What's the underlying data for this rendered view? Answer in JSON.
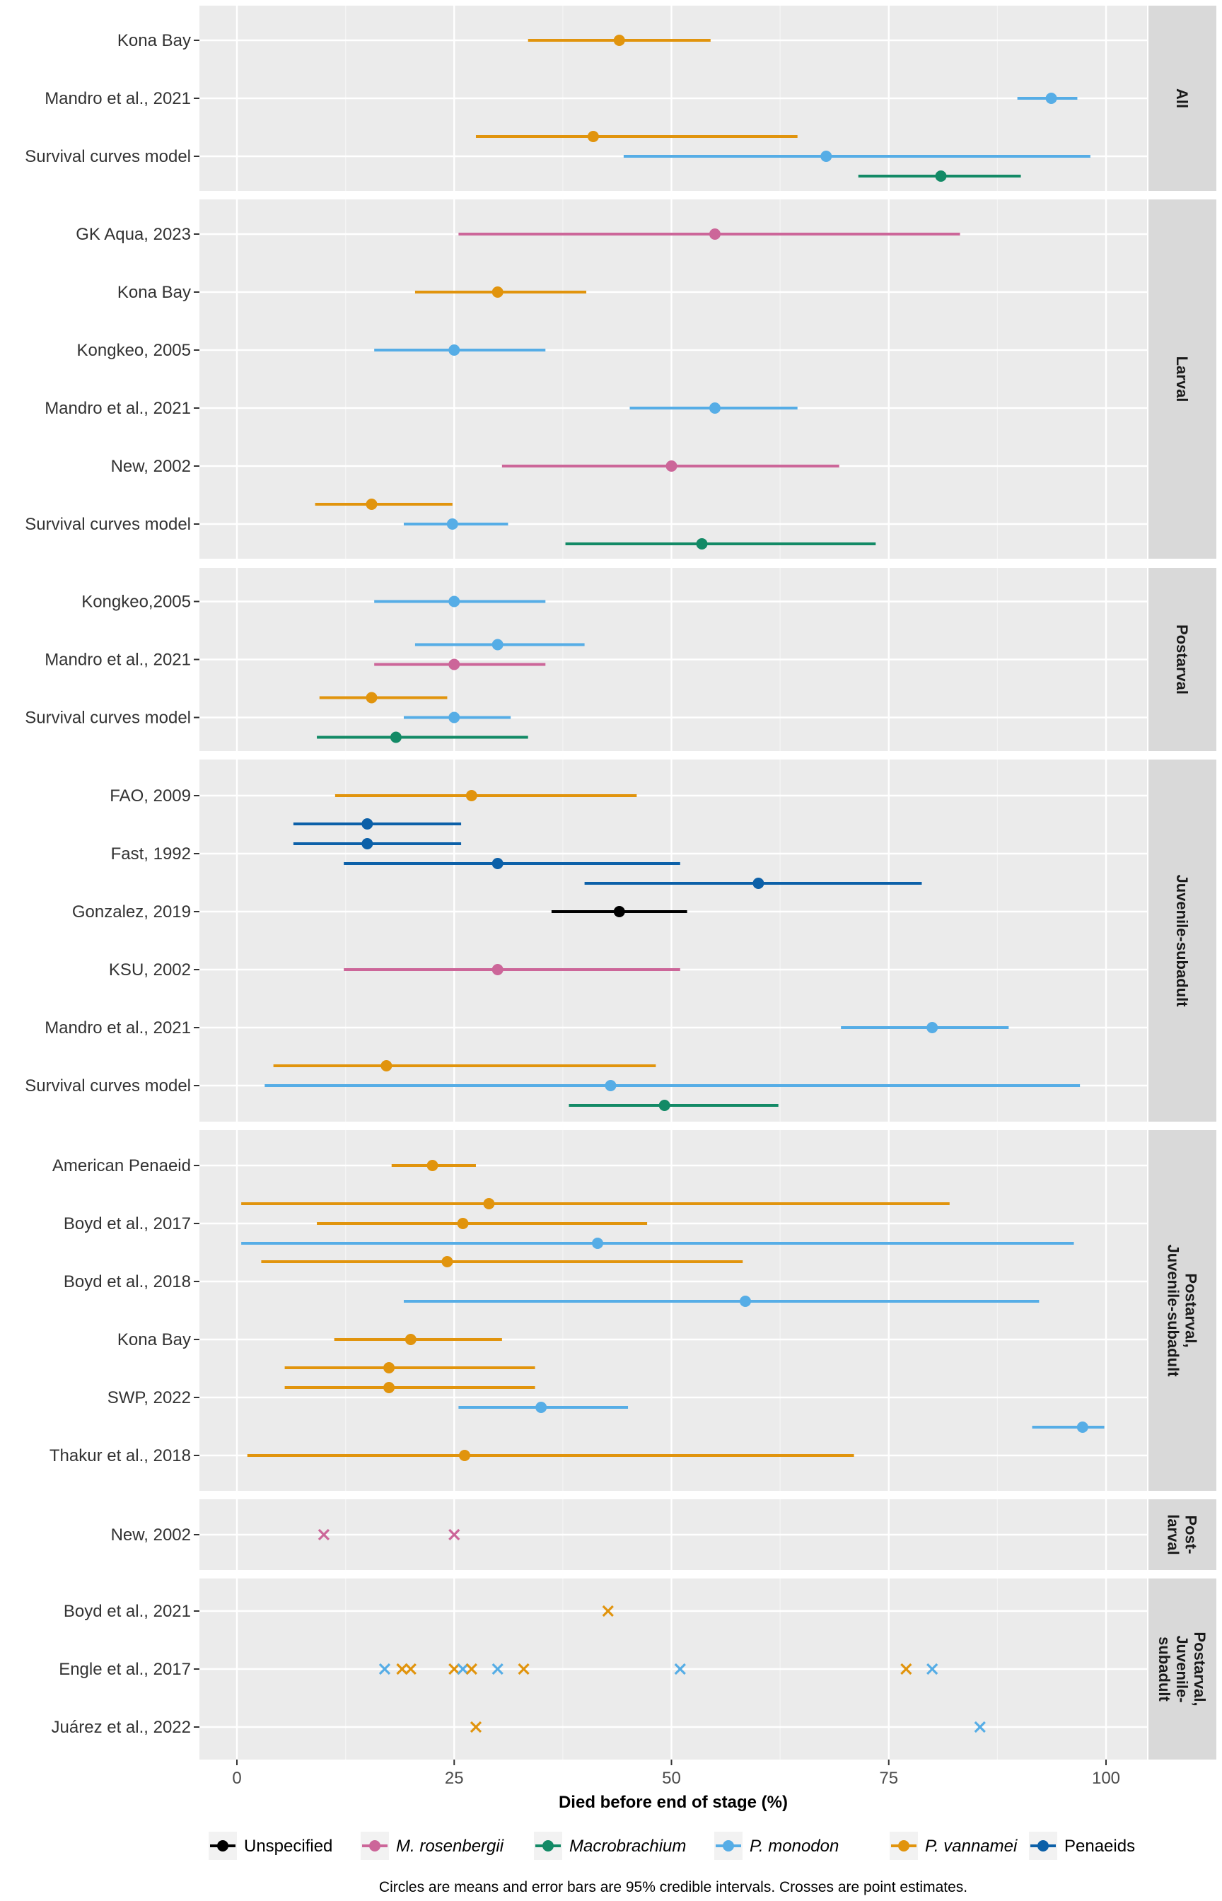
{
  "chart_data": {
    "type": "scatter",
    "xlabel": "Died before end of stage (%)",
    "xlim": [
      -4.5,
      104.5
    ],
    "x_ticks": [
      0,
      25,
      50,
      75,
      100
    ],
    "caption": "Circles are means and error bars are 95% credible intervals. Crosses are point estimates.",
    "legend_position": "bottom",
    "legend": [
      {
        "key": "unspecified",
        "label": "Unspecified",
        "italic": false
      },
      {
        "key": "mros",
        "label": "M. rosenbergii",
        "italic": true
      },
      {
        "key": "macro",
        "label": "Macrobrachium",
        "italic": true
      },
      {
        "key": "pmono",
        "label": "P. monodon",
        "italic": true
      },
      {
        "key": "pvan",
        "label": "P. vannamei",
        "italic": true
      },
      {
        "key": "pen",
        "label": "Penaeids",
        "italic": false
      }
    ],
    "colors": {
      "unspecified": "#000000",
      "mros": "#CC6699",
      "macro": "#138A66",
      "pmono": "#56ADE6",
      "pvan": "#E1940D",
      "pen": "#0C60A8"
    },
    "panels": [
      {
        "strip": [
          "All"
        ],
        "categories": [
          "Survival curves model",
          "Mandro et al., 2021",
          "Kona Bay"
        ],
        "points": [
          {
            "cat": 0,
            "off": 1,
            "series": "pvan",
            "mean": 41,
            "lo": 27.5,
            "hi": 64.5
          },
          {
            "cat": 0,
            "off": 0,
            "series": "pmono",
            "mean": 67.8,
            "lo": 44.5,
            "hi": 98.2
          },
          {
            "cat": 0,
            "off": -1,
            "series": "macro",
            "mean": 81,
            "lo": 71.5,
            "hi": 90.2
          },
          {
            "cat": 1,
            "off": 0,
            "series": "pmono",
            "mean": 93.7,
            "lo": 89.8,
            "hi": 96.7
          },
          {
            "cat": 2,
            "off": 0,
            "series": "pvan",
            "mean": 44,
            "lo": 33.5,
            "hi": 54.5
          }
        ]
      },
      {
        "strip": [
          "Larval"
        ],
        "categories": [
          "Survival curves model",
          "New, 2002",
          "Mandro et al., 2021",
          "Kongkeo, 2005",
          "Kona Bay",
          "GK Aqua, 2023"
        ],
        "points": [
          {
            "cat": 0,
            "off": 1,
            "series": "pvan",
            "mean": 15.5,
            "lo": 9,
            "hi": 24.8
          },
          {
            "cat": 0,
            "off": 0,
            "series": "pmono",
            "mean": 24.8,
            "lo": 19.2,
            "hi": 31.2
          },
          {
            "cat": 0,
            "off": -1,
            "series": "macro",
            "mean": 53.5,
            "lo": 37.8,
            "hi": 73.5
          },
          {
            "cat": 1,
            "off": 0,
            "series": "mros",
            "mean": 50,
            "lo": 30.5,
            "hi": 69.3
          },
          {
            "cat": 2,
            "off": 0,
            "series": "pmono",
            "mean": 55,
            "lo": 45.2,
            "hi": 64.5
          },
          {
            "cat": 3,
            "off": 0,
            "series": "pmono",
            "mean": 25,
            "lo": 15.8,
            "hi": 35.5
          },
          {
            "cat": 4,
            "off": 0,
            "series": "pvan",
            "mean": 30,
            "lo": 20.5,
            "hi": 40.2
          },
          {
            "cat": 5,
            "off": 0,
            "series": "mros",
            "mean": 55,
            "lo": 25.5,
            "hi": 83.2
          }
        ]
      },
      {
        "strip": [
          "Postarval"
        ],
        "categories": [
          "Survival curves model",
          "Mandro et al., 2021",
          "Kongkeo,2005"
        ],
        "points": [
          {
            "cat": 0,
            "off": 1,
            "series": "pvan",
            "mean": 15.5,
            "lo": 9.5,
            "hi": 24.2
          },
          {
            "cat": 0,
            "off": 0,
            "series": "pmono",
            "mean": 25,
            "lo": 19.2,
            "hi": 31.5
          },
          {
            "cat": 0,
            "off": -1,
            "series": "macro",
            "mean": 18.3,
            "lo": 9.2,
            "hi": 33.5
          },
          {
            "cat": 1,
            "off": 0.75,
            "series": "pmono",
            "mean": 30,
            "lo": 20.5,
            "hi": 40
          },
          {
            "cat": 1,
            "off": -0.25,
            "series": "mros",
            "mean": 25,
            "lo": 15.8,
            "hi": 35.5
          },
          {
            "cat": 2,
            "off": 0,
            "series": "pmono",
            "mean": 25,
            "lo": 15.8,
            "hi": 35.5
          }
        ]
      },
      {
        "strip": [
          "Juvenile-subadult"
        ],
        "categories": [
          "Survival curves model",
          "Mandro et al., 2021",
          "KSU, 2002",
          "Gonzalez, 2019",
          "Fast, 1992",
          "FAO, 2009"
        ],
        "points": [
          {
            "cat": 0,
            "off": 1,
            "series": "pvan",
            "mean": 17.2,
            "lo": 4.2,
            "hi": 48.2
          },
          {
            "cat": 0,
            "off": 0,
            "series": "pmono",
            "mean": 43,
            "lo": 3.2,
            "hi": 97
          },
          {
            "cat": 0,
            "off": -1,
            "series": "macro",
            "mean": 49.2,
            "lo": 38.2,
            "hi": 62.3
          },
          {
            "cat": 1,
            "off": 0,
            "series": "pmono",
            "mean": 80,
            "lo": 69.5,
            "hi": 88.8
          },
          {
            "cat": 2,
            "off": 0,
            "series": "mros",
            "mean": 30,
            "lo": 12.3,
            "hi": 51
          },
          {
            "cat": 3,
            "off": 0,
            "series": "unspecified",
            "mean": 44,
            "lo": 36.2,
            "hi": 51.8
          },
          {
            "cat": 4,
            "off": 1.5,
            "series": "pen",
            "mean": 15,
            "lo": 6.5,
            "hi": 25.8
          },
          {
            "cat": 4,
            "off": 0.5,
            "series": "pen",
            "mean": 15,
            "lo": 6.5,
            "hi": 25.8
          },
          {
            "cat": 4,
            "off": -0.5,
            "series": "pen",
            "mean": 30,
            "lo": 12.3,
            "hi": 51
          },
          {
            "cat": 4,
            "off": -1.5,
            "series": "pen",
            "mean": 60,
            "lo": 40,
            "hi": 78.8
          },
          {
            "cat": 5,
            "off": 0,
            "series": "pvan",
            "mean": 27,
            "lo": 11.3,
            "hi": 46
          }
        ]
      },
      {
        "strip": [
          "Postarval,",
          "Juvenile-subadult"
        ],
        "categories": [
          "Thakur et al., 2018",
          "SWP, 2022",
          "Kona Bay",
          "Boyd et al., 2018",
          "Boyd et al., 2017",
          "American Penaeid"
        ],
        "points": [
          {
            "cat": 0,
            "off": 0,
            "series": "pvan",
            "mean": 26.2,
            "lo": 1.2,
            "hi": 71
          },
          {
            "cat": 1,
            "off": 1.5,
            "series": "pvan",
            "mean": 17.5,
            "lo": 5.5,
            "hi": 34.3
          },
          {
            "cat": 1,
            "off": 0.5,
            "series": "pvan",
            "mean": 17.5,
            "lo": 5.5,
            "hi": 34.3
          },
          {
            "cat": 1,
            "off": -0.5,
            "series": "pmono",
            "mean": 35,
            "lo": 25.5,
            "hi": 45
          },
          {
            "cat": 1,
            "off": -1.5,
            "series": "pmono",
            "mean": 97.3,
            "lo": 91.5,
            "hi": 99.8
          },
          {
            "cat": 2,
            "off": 0,
            "series": "pvan",
            "mean": 20,
            "lo": 11.2,
            "hi": 30.5
          },
          {
            "cat": 3,
            "off": 1,
            "series": "pvan",
            "mean": 24.2,
            "lo": 2.8,
            "hi": 58.2
          },
          {
            "cat": 3,
            "off": -1,
            "series": "pmono",
            "mean": 58.5,
            "lo": 19.2,
            "hi": 92.3
          },
          {
            "cat": 4,
            "off": 1,
            "series": "pvan",
            "mean": 29,
            "lo": 0.5,
            "hi": 82
          },
          {
            "cat": 4,
            "off": 0,
            "series": "pvan",
            "mean": 26,
            "lo": 9.2,
            "hi": 47.2
          },
          {
            "cat": 4,
            "off": -1,
            "series": "pmono",
            "mean": 41.5,
            "lo": 0.5,
            "hi": 96.3
          },
          {
            "cat": 5,
            "off": 0,
            "series": "pvan",
            "mean": 22.5,
            "lo": 17.8,
            "hi": 27.5
          }
        ]
      },
      {
        "strip": [
          "Post-",
          "larval"
        ],
        "categories": [
          "New, 2002"
        ],
        "crosses": [
          {
            "cat": 0,
            "series": "mros",
            "x": 10
          },
          {
            "cat": 0,
            "series": "mros",
            "x": 25
          }
        ]
      },
      {
        "strip": [
          "Postarval,",
          "Juvenile-",
          "subadult"
        ],
        "categories": [
          "Juárez et al., 2022",
          "Engle et al., 2017",
          "Boyd et al., 2021"
        ],
        "crosses": [
          {
            "cat": 0,
            "series": "pvan",
            "x": 27.5
          },
          {
            "cat": 0,
            "series": "pmono",
            "x": 85.5
          },
          {
            "cat": 1,
            "series": "pmono",
            "x": 17
          },
          {
            "cat": 1,
            "series": "pvan",
            "x": 19
          },
          {
            "cat": 1,
            "series": "pvan",
            "x": 20
          },
          {
            "cat": 1,
            "series": "pvan",
            "x": 25
          },
          {
            "cat": 1,
            "series": "pmono",
            "x": 26
          },
          {
            "cat": 1,
            "series": "pvan",
            "x": 27
          },
          {
            "cat": 1,
            "series": "pmono",
            "x": 30
          },
          {
            "cat": 1,
            "series": "pvan",
            "x": 33
          },
          {
            "cat": 1,
            "series": "pmono",
            "x": 51
          },
          {
            "cat": 1,
            "series": "pvan",
            "x": 77
          },
          {
            "cat": 1,
            "series": "pmono",
            "x": 80
          },
          {
            "cat": 2,
            "series": "pvan",
            "x": 42.7
          }
        ]
      }
    ]
  }
}
